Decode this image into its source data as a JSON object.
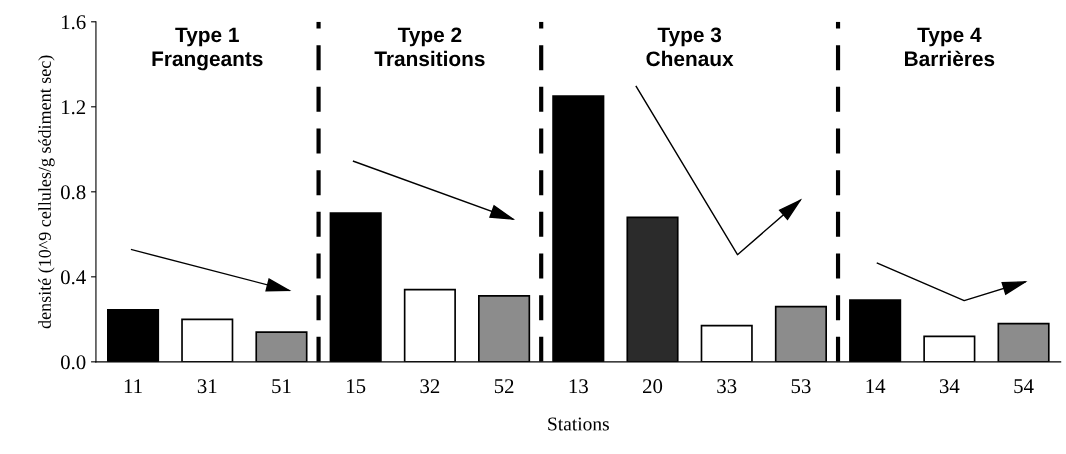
{
  "chart_data": {
    "type": "bar",
    "xlabel": "Stations",
    "ylabel": "densité (10^9 cellules/g sédiment sec)",
    "categories": [
      "11",
      "31",
      "51",
      "15",
      "32",
      "52",
      "13",
      "20",
      "33",
      "53",
      "14",
      "34",
      "54"
    ],
    "values": [
      0.245,
      0.2,
      0.14,
      0.7,
      0.34,
      0.31,
      1.25,
      0.68,
      0.17,
      0.26,
      0.29,
      0.12,
      0.18
    ],
    "colors": [
      "#000000",
      "#ffffff",
      "#8c8c8c",
      "#000000",
      "#ffffff",
      "#8c8c8c",
      "#000000",
      "#2b2b2b",
      "#ffffff",
      "#8c8c8c",
      "#000000",
      "#ffffff",
      "#8c8c8c"
    ],
    "ylim": [
      0,
      1.6
    ],
    "yticks": [
      {
        "value": 0,
        "label": "0.0"
      },
      {
        "value": 0.4,
        "label": "0.4"
      },
      {
        "value": 0.8,
        "label": "0.8"
      },
      {
        "value": 1.2,
        "label": "1.2"
      },
      {
        "value": 1.6,
        "label": "1.6"
      }
    ],
    "annotations": [
      "Type 1\nFrangeants",
      "Type 2\nTransitions",
      "Type 3\nChenaux",
      "Type 4\nBarrières"
    ],
    "grid": false
  }
}
